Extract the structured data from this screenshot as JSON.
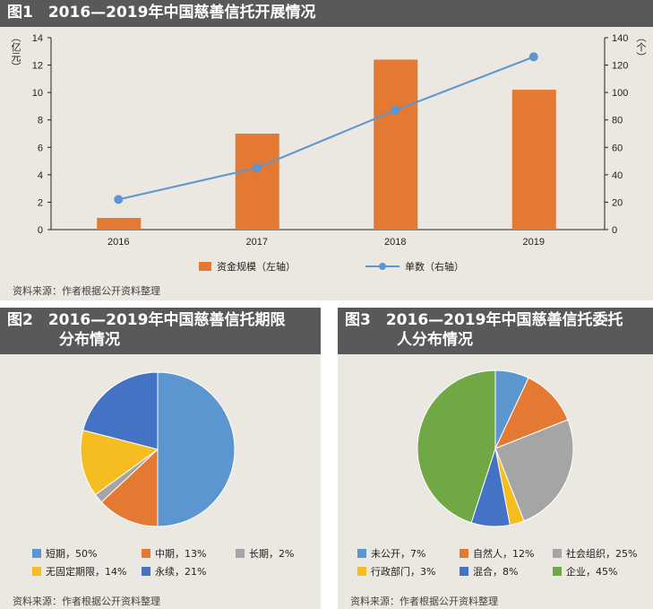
{
  "chart_data": [
    {
      "type": "bar+line",
      "title": "图1　2016—2019年中国慈善信托开展情况",
      "categories": [
        "2016",
        "2017",
        "2018",
        "2019"
      ],
      "series": [
        {
          "name": "资金规模（左轴）",
          "type": "bar",
          "axis": "left",
          "color": "#e47933",
          "values": [
            0.85,
            7.0,
            12.4,
            10.2
          ]
        },
        {
          "name": "单数（右轴）",
          "type": "line",
          "axis": "right",
          "color": "#5b96d0",
          "values": [
            22,
            45,
            87,
            126
          ]
        }
      ],
      "ylabel_left": "（亿元）",
      "ylabel_right": "（个）",
      "ylim_left": [
        0,
        14
      ],
      "yticks_left": [
        0,
        2,
        4,
        6,
        8,
        10,
        12,
        14
      ],
      "ylim_right": [
        0,
        140
      ],
      "yticks_right": [
        0,
        20,
        40,
        60,
        80,
        100,
        120,
        140
      ],
      "legend": "bottom",
      "source": "资料来源：作者根据公开资料整理"
    },
    {
      "type": "pie",
      "title": "图2　2016—2019年中国慈善信托期限分布情况",
      "slices": [
        {
          "label": "短期，50%",
          "value": 50,
          "color": "#5b96d0"
        },
        {
          "label": "中期，13%",
          "value": 13,
          "color": "#e47933"
        },
        {
          "label": "长期，2%",
          "value": 2,
          "color": "#a5a5a5"
        },
        {
          "label": "无固定期限，14%",
          "value": 14,
          "color": "#f5bd1f"
        },
        {
          "label": "永续，21%",
          "value": 21,
          "color": "#4472c4"
        }
      ],
      "legend": "bottom",
      "source": "资料来源：作者根据公开资料整理"
    },
    {
      "type": "pie",
      "title": "图3　2016—2019年中国慈善信托委托人分布情况",
      "slices": [
        {
          "label": "未公开，7%",
          "value": 7,
          "color": "#5b96d0"
        },
        {
          "label": "自然人，12%",
          "value": 12,
          "color": "#e47933"
        },
        {
          "label": "社会组织，25%",
          "value": 25,
          "color": "#a5a5a5"
        },
        {
          "label": "行政部门，3%",
          "value": 3,
          "color": "#f5bd1f"
        },
        {
          "label": "混合，8%",
          "value": 8,
          "color": "#4472c4"
        },
        {
          "label": "企业，45%",
          "value": 45,
          "color": "#70a845"
        }
      ],
      "legend": "bottom",
      "source": "资料来源：作者根据公开资料整理"
    }
  ],
  "titles": {
    "fig1": "图1　2016—2019年中国慈善信托开展情况",
    "fig2_l1": "图2　2016—2019年中国慈善信托期限",
    "fig2_l2": "分布情况",
    "fig3_l1": "图3　2016—2019年中国慈善信托委托",
    "fig3_l2": "人分布情况"
  }
}
